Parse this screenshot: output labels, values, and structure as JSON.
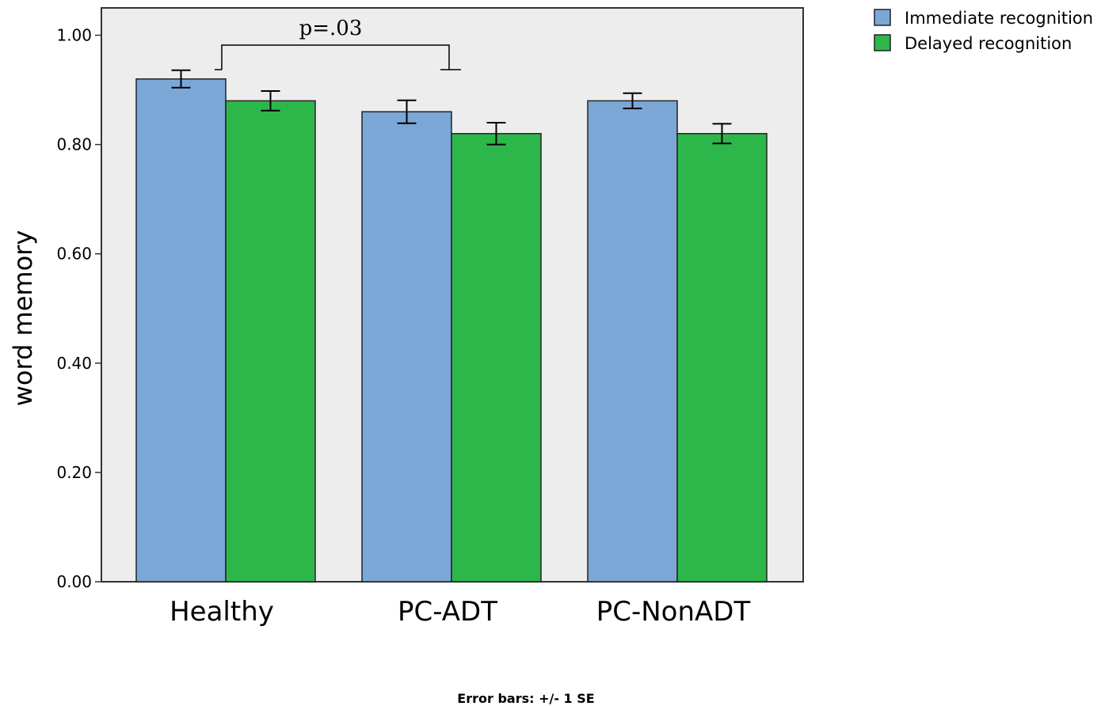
{
  "chart_data": {
    "type": "bar",
    "categories": [
      "Healthy",
      "PC-ADT",
      "PC-NonADT"
    ],
    "series": [
      {
        "name": "Immediate recognition",
        "color": "#7BA7D7",
        "values": [
          0.92,
          0.86,
          0.88
        ],
        "se": [
          0.016,
          0.021,
          0.014
        ]
      },
      {
        "name": "Delayed recognition",
        "color": "#2DB74A",
        "values": [
          0.88,
          0.82,
          0.82
        ],
        "se": [
          0.018,
          0.02,
          0.018
        ]
      }
    ],
    "ylabel": "word memory",
    "xlabel": "",
    "ylim": [
      0,
      1.05
    ],
    "yticks": [
      "0.00",
      "0.20",
      "0.40",
      "0.60",
      "0.80",
      "1.00"
    ],
    "ytick_values": [
      0,
      0.2,
      0.4,
      0.6,
      0.8,
      1.0
    ],
    "legend_position": "top-right-outside",
    "plot_background": "#EDEDED",
    "grid": false,
    "annotations": [
      {
        "text": "p=.03",
        "bracket_from": [
          "Healthy",
          "Immediate recognition"
        ],
        "bracket_to": [
          "PC-ADT",
          "Immediate recognition"
        ]
      }
    ],
    "footnote": "Error bars: +/- 1 SE"
  }
}
